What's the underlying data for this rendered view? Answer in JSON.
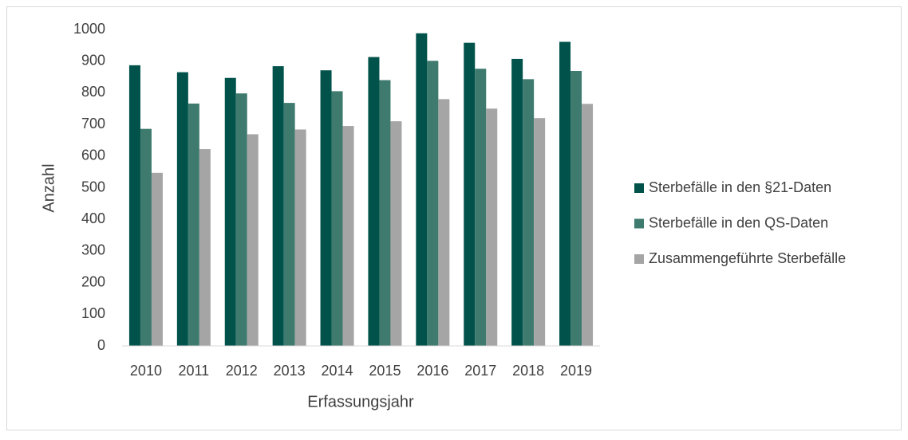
{
  "chart_data": {
    "type": "bar",
    "x_label": "Erfassungsjahr",
    "y_label": "Anzahl",
    "categories": [
      "2010",
      "2011",
      "2012",
      "2013",
      "2014",
      "2015",
      "2016",
      "2017",
      "2018",
      "2019"
    ],
    "series": [
      {
        "name": "Sterbefälle in den §21-Daten",
        "color": "#00524a",
        "values": [
          887,
          865,
          847,
          884,
          871,
          913,
          988,
          958,
          907,
          961
        ]
      },
      {
        "name": "Sterbefälle in den QS-Daten",
        "color": "#3f7a6f",
        "values": [
          686,
          766,
          798,
          768,
          805,
          840,
          901,
          876,
          843,
          869
        ]
      },
      {
        "name": "Zusammengeführte Sterbefälle",
        "color": "#a5a5a5",
        "values": [
          547,
          622,
          669,
          684,
          695,
          710,
          780,
          750,
          720,
          765
        ]
      }
    ],
    "ylim": [
      0,
      1000
    ],
    "yticks": [
      0,
      100,
      200,
      300,
      400,
      500,
      600,
      700,
      800,
      900,
      1000
    ],
    "grid": false,
    "legend": "right"
  }
}
